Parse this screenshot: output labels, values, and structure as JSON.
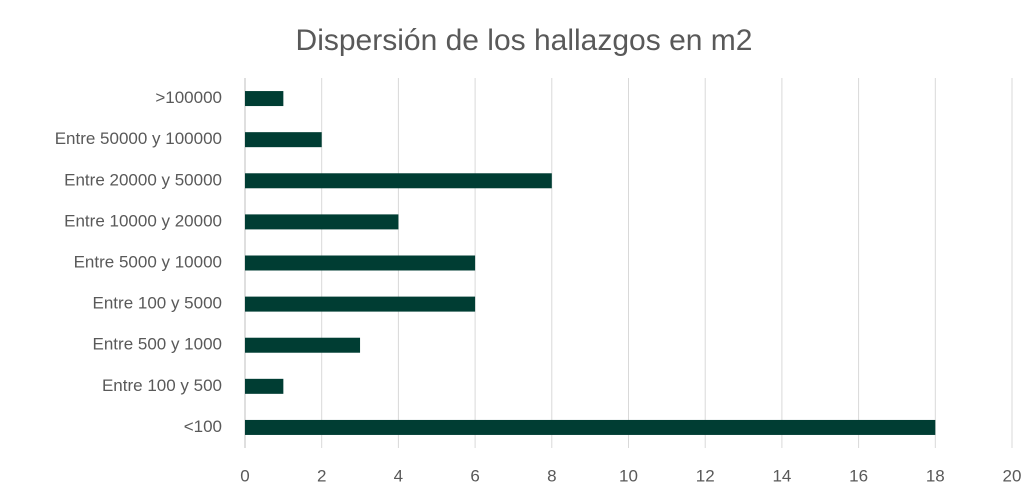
{
  "chart_data": {
    "type": "bar",
    "orientation": "horizontal",
    "title": "Dispersión de los hallazgos en m2",
    "categories": [
      "<100",
      "Entre 100 y 500",
      "Entre 500 y 1000",
      "Entre 100 y 5000",
      "Entre 5000 y 10000",
      "Entre 10000 y 20000",
      "Entre 20000 y 50000",
      "Entre 50000 y 100000",
      ">100000"
    ],
    "values": [
      18,
      1,
      3,
      6,
      6,
      4,
      8,
      2,
      1
    ],
    "color": "#003d33",
    "xlim": [
      0,
      20
    ],
    "xticks": [
      0,
      2,
      4,
      6,
      8,
      10,
      12,
      14,
      16,
      18,
      20
    ],
    "grid": true
  }
}
